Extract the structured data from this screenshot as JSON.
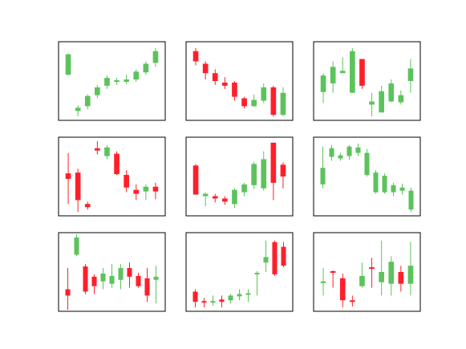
{
  "colors": {
    "up": "#5cc35c",
    "down": "#ff1f2a",
    "frame": "#000000"
  },
  "chart_data": [
    {
      "type": "candlestick",
      "ylim": [
        0,
        100
      ],
      "candles": [
        {
          "o": 58,
          "c": 84,
          "h": 85,
          "l": 57
        },
        {
          "o": 12,
          "c": 16,
          "h": 19,
          "l": 5
        },
        {
          "o": 18,
          "c": 31,
          "h": 33,
          "l": 14
        },
        {
          "o": 32,
          "c": 42,
          "h": 45,
          "l": 28
        },
        {
          "o": 44,
          "c": 54,
          "h": 57,
          "l": 40
        },
        {
          "o": 50,
          "c": 51,
          "h": 54,
          "l": 45
        },
        {
          "o": 49,
          "c": 52,
          "h": 58,
          "l": 46
        },
        {
          "o": 52,
          "c": 62,
          "h": 65,
          "l": 49
        },
        {
          "o": 61,
          "c": 72,
          "h": 75,
          "l": 58
        },
        {
          "o": 73,
          "c": 88,
          "h": 92,
          "l": 68
        }
      ]
    },
    {
      "type": "candlestick",
      "ylim": [
        0,
        100
      ],
      "candles": [
        {
          "o": 88,
          "c": 75,
          "h": 92,
          "l": 70
        },
        {
          "o": 72,
          "c": 60,
          "h": 75,
          "l": 52
        },
        {
          "o": 60,
          "c": 50,
          "h": 65,
          "l": 45
        },
        {
          "o": 48,
          "c": 44,
          "h": 55,
          "l": 40
        },
        {
          "o": 48,
          "c": 30,
          "h": 50,
          "l": 25
        },
        {
          "o": 28,
          "c": 18,
          "h": 30,
          "l": 15
        },
        {
          "o": 18,
          "c": 26,
          "h": 33,
          "l": 17
        },
        {
          "o": 25,
          "c": 42,
          "h": 47,
          "l": 22
        },
        {
          "o": 42,
          "c": 7,
          "h": 44,
          "l": 5
        },
        {
          "o": 7,
          "c": 35,
          "h": 42,
          "l": 5
        }
      ]
    },
    {
      "type": "candlestick",
      "ylim": [
        0,
        100
      ],
      "candles": [
        {
          "o": 36,
          "c": 57,
          "h": 60,
          "l": 22
        },
        {
          "o": 47,
          "c": 68,
          "h": 75,
          "l": 35
        },
        {
          "o": 60,
          "c": 63,
          "h": 80,
          "l": 60
        },
        {
          "o": 35,
          "c": 88,
          "h": 92,
          "l": 35
        },
        {
          "o": 78,
          "c": 44,
          "h": 78,
          "l": 40
        },
        {
          "o": 20,
          "c": 24,
          "h": 35,
          "l": 5
        },
        {
          "o": 10,
          "c": 37,
          "h": 44,
          "l": 10
        },
        {
          "o": 24,
          "c": 47,
          "h": 52,
          "l": 23
        },
        {
          "o": 23,
          "c": 32,
          "h": 38,
          "l": 20
        },
        {
          "o": 50,
          "c": 66,
          "h": 78,
          "l": 35
        }
      ]
    },
    {
      "type": "candlestick",
      "ylim": [
        0,
        100
      ],
      "candles": [
        {
          "o": 54,
          "c": 47,
          "h": 80,
          "l": 15
        },
        {
          "o": 55,
          "c": 20,
          "h": 60,
          "l": 5
        },
        {
          "o": 15,
          "c": 11,
          "h": 18,
          "l": 8
        },
        {
          "o": 86,
          "c": 83,
          "h": 95,
          "l": 78
        },
        {
          "o": 76,
          "c": 87,
          "h": 90,
          "l": 72
        },
        {
          "o": 79,
          "c": 53,
          "h": 82,
          "l": 52
        },
        {
          "o": 52,
          "c": 36,
          "h": 58,
          "l": 30
        },
        {
          "o": 33,
          "c": 28,
          "h": 40,
          "l": 20
        },
        {
          "o": 31,
          "c": 37,
          "h": 40,
          "l": 20
        },
        {
          "o": 37,
          "c": 31,
          "h": 42,
          "l": 21
        }
      ]
    },
    {
      "type": "candlestick",
      "ylim": [
        0,
        100
      ],
      "candles": [
        {
          "o": 64,
          "c": 27,
          "h": 66,
          "l": 27
        },
        {
          "o": 25,
          "c": 28,
          "h": 30,
          "l": 12
        },
        {
          "o": 25,
          "c": 22,
          "h": 28,
          "l": 17
        },
        {
          "o": 22,
          "c": 18,
          "h": 25,
          "l": 14
        },
        {
          "o": 15,
          "c": 33,
          "h": 35,
          "l": 10
        },
        {
          "o": 30,
          "c": 40,
          "h": 42,
          "l": 25
        },
        {
          "o": 39,
          "c": 66,
          "h": 69,
          "l": 34
        },
        {
          "o": 35,
          "c": 72,
          "h": 82,
          "l": 32
        },
        {
          "o": 93,
          "c": 42,
          "h": 93,
          "l": 20
        },
        {
          "o": 65,
          "c": 50,
          "h": 68,
          "l": 35
        }
      ]
    },
    {
      "type": "candlestick",
      "ylim": [
        0,
        100
      ],
      "candles": [
        {
          "o": 40,
          "c": 61,
          "h": 88,
          "l": 35
        },
        {
          "o": 75,
          "c": 86,
          "h": 90,
          "l": 70
        },
        {
          "o": 73,
          "c": 77,
          "h": 80,
          "l": 70
        },
        {
          "o": 76,
          "c": 88,
          "h": 90,
          "l": 71
        },
        {
          "o": 80,
          "c": 87,
          "h": 92,
          "l": 76
        },
        {
          "o": 52,
          "c": 80,
          "h": 85,
          "l": 50
        },
        {
          "o": 30,
          "c": 55,
          "h": 58,
          "l": 28
        },
        {
          "o": 30,
          "c": 51,
          "h": 54,
          "l": 28
        },
        {
          "o": 30,
          "c": 39,
          "h": 42,
          "l": 25
        },
        {
          "o": 32,
          "c": 36,
          "h": 41,
          "l": 27
        },
        {
          "o": 8,
          "c": 32,
          "h": 36,
          "l": 5
        }
      ]
    },
    {
      "type": "candlestick",
      "ylim": [
        0,
        100
      ],
      "candles": [
        {
          "o": 28,
          "c": 20,
          "h": 55,
          "l": 2
        },
        {
          "o": 72,
          "c": 94,
          "h": 98,
          "l": 70
        },
        {
          "o": 57,
          "c": 25,
          "h": 60,
          "l": 22
        },
        {
          "o": 44,
          "c": 32,
          "h": 47,
          "l": 22
        },
        {
          "o": 38,
          "c": 48,
          "h": 55,
          "l": 28
        },
        {
          "o": 35,
          "c": 45,
          "h": 60,
          "l": 30
        },
        {
          "o": 40,
          "c": 55,
          "h": 60,
          "l": 28
        },
        {
          "o": 55,
          "c": 44,
          "h": 62,
          "l": 30
        },
        {
          "o": 45,
          "c": 32,
          "h": 49,
          "l": 30
        },
        {
          "o": 42,
          "c": 20,
          "h": 55,
          "l": 12
        },
        {
          "o": 40,
          "c": 44,
          "h": 58,
          "l": 10
        }
      ]
    },
    {
      "type": "candlestick",
      "ylim": [
        0,
        100
      ],
      "candles": [
        {
          "o": 25,
          "c": 12,
          "h": 28,
          "l": 5
        },
        {
          "o": 13,
          "c": 12,
          "h": 17,
          "l": 5
        },
        {
          "o": 12,
          "c": 13,
          "h": 20,
          "l": 7
        },
        {
          "o": 15,
          "c": 12,
          "h": 20,
          "l": 5
        },
        {
          "o": 14,
          "c": 20,
          "h": 22,
          "l": 10
        },
        {
          "o": 19,
          "c": 22,
          "h": 28,
          "l": 14
        },
        {
          "o": 22,
          "c": 23,
          "h": 28,
          "l": 12
        },
        {
          "o": 48,
          "c": 49,
          "h": 51,
          "l": 20
        },
        {
          "o": 62,
          "c": 69,
          "h": 90,
          "l": 50
        },
        {
          "o": 88,
          "c": 47,
          "h": 90,
          "l": 45
        },
        {
          "o": 82,
          "c": 58,
          "h": 88,
          "l": 56
        }
      ]
    },
    {
      "type": "candlestick",
      "ylim": [
        0,
        100
      ],
      "candles": [
        {
          "o": 36,
          "c": 38,
          "h": 55,
          "l": 20
        },
        {
          "o": 51,
          "c": 49,
          "h": 52,
          "l": 30
        },
        {
          "o": 42,
          "c": 14,
          "h": 48,
          "l": 5
        },
        {
          "o": 14,
          "c": 12,
          "h": 20,
          "l": 6
        },
        {
          "o": 32,
          "c": 45,
          "h": 62,
          "l": 30
        },
        {
          "o": 56,
          "c": 55,
          "h": 68,
          "l": 30
        },
        {
          "o": 37,
          "c": 50,
          "h": 90,
          "l": 20
        },
        {
          "o": 35,
          "c": 63,
          "h": 70,
          "l": 20
        },
        {
          "o": 50,
          "c": 35,
          "h": 58,
          "l": 25
        },
        {
          "o": 35,
          "c": 58,
          "h": 88,
          "l": 20
        }
      ]
    }
  ]
}
